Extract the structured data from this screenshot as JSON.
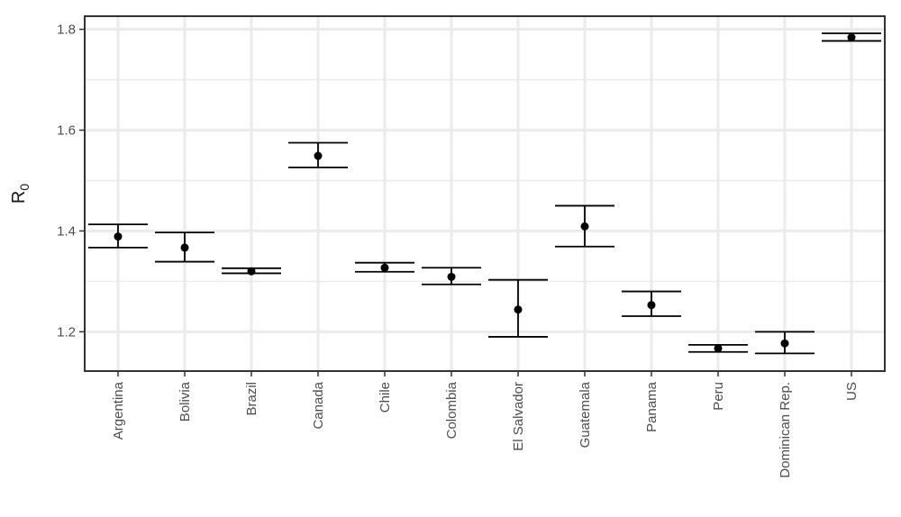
{
  "chart_data": {
    "type": "scatter",
    "title": "",
    "xlabel": "",
    "ylabel": "R",
    "ylabel_subscript": "0",
    "ylim": [
      1.122,
      1.826
    ],
    "yticks": [
      1.2,
      1.4,
      1.6,
      1.8
    ],
    "ytick_labels": [
      "1.2",
      "1.4",
      "1.6",
      "1.8"
    ],
    "grid": true,
    "categories": [
      "Argentina",
      "Bolivia",
      "Brazil",
      "Canada",
      "Chile",
      "Colombia",
      "El Salvador",
      "Guatemala",
      "Panama",
      "Peru",
      "Dominican Rep.",
      "US"
    ],
    "series": [
      {
        "values": [
          1.389,
          1.367,
          1.32,
          1.549,
          1.327,
          1.309,
          1.244,
          1.409,
          1.253,
          1.167,
          1.177,
          1.784
        ],
        "lower": [
          1.367,
          1.339,
          1.316,
          1.526,
          1.319,
          1.294,
          1.19,
          1.369,
          1.231,
          1.16,
          1.157,
          1.777
        ],
        "upper": [
          1.413,
          1.397,
          1.326,
          1.575,
          1.337,
          1.327,
          1.303,
          1.45,
          1.28,
          1.174,
          1.2,
          1.792
        ]
      }
    ],
    "colors": {
      "point": "#000000",
      "grid": "#ebebeb",
      "panel_border": "#333333",
      "text": "#4d4d4d"
    }
  }
}
